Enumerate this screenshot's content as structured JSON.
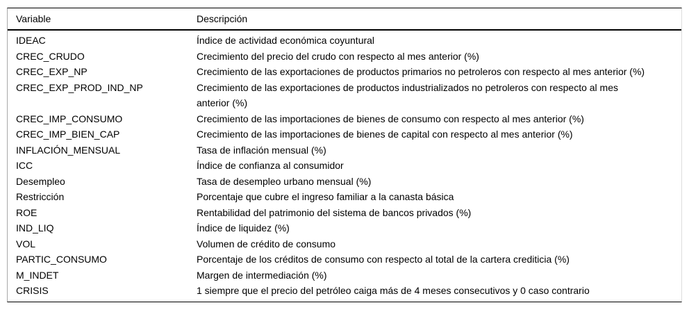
{
  "table": {
    "columns": [
      {
        "label": "Variable"
      },
      {
        "label": "Descripción"
      }
    ],
    "rows": [
      {
        "variable": "IDEAC",
        "descripcion": "Índice de actividad económica coyuntural"
      },
      {
        "variable": "CREC_CRUDO",
        "descripcion": "Crecimiento del precio del crudo con respecto al mes anterior (%)"
      },
      {
        "variable": "CREC_EXP_NP",
        "descripcion": "Crecimiento de las exportaciones de productos primarios no petroleros con respecto al mes anterior (%)"
      },
      {
        "variable": "CREC_EXP_PROD_IND_NP",
        "descripcion": "Crecimiento de las exportaciones de productos industrializados no petroleros con respecto al mes anterior (%)"
      },
      {
        "variable": "CREC_IMP_CONSUMO",
        "descripcion": "Crecimiento de las importaciones de bienes de consumo con respecto al mes anterior (%)"
      },
      {
        "variable": "CREC_IMP_BIEN_CAP",
        "descripcion": "Crecimiento de las importaciones de bienes de capital con respecto al mes anterior (%)"
      },
      {
        "variable": "INFLACIÓN_MENSUAL",
        "descripcion": "Tasa de inflación mensual (%)"
      },
      {
        "variable": "ICC",
        "descripcion": "Índice de confianza al consumidor"
      },
      {
        "variable": "Desempleo",
        "descripcion": "Tasa de desempleo urbano mensual (%)"
      },
      {
        "variable": "Restricción",
        "descripcion": "Porcentaje que cubre el ingreso familiar a la canasta básica"
      },
      {
        "variable": "ROE",
        "descripcion": "Rentabilidad del patrimonio del sistema de bancos privados (%)"
      },
      {
        "variable": "IND_LIQ",
        "descripcion": "Índice de liquidez (%)"
      },
      {
        "variable": "VOL",
        "descripcion": "Volumen de crédito de consumo"
      },
      {
        "variable": "PARTIC_CONSUMO",
        "descripcion": "Porcentaje de los créditos de consumo con respecto al total de la cartera crediticia (%)"
      },
      {
        "variable": "M_INDET",
        "descripcion": "Margen de intermediación (%)"
      },
      {
        "variable": "CRISIS",
        "descripcion": "1 siempre que el precio del petróleo caiga más de 4 meses consecutivos y 0 caso contrario"
      }
    ]
  },
  "colors": {
    "text": "#000000",
    "rule": "#000000",
    "frame_left": "#a8a8a8",
    "frame_right": "#dddddd",
    "background": "#ffffff"
  }
}
